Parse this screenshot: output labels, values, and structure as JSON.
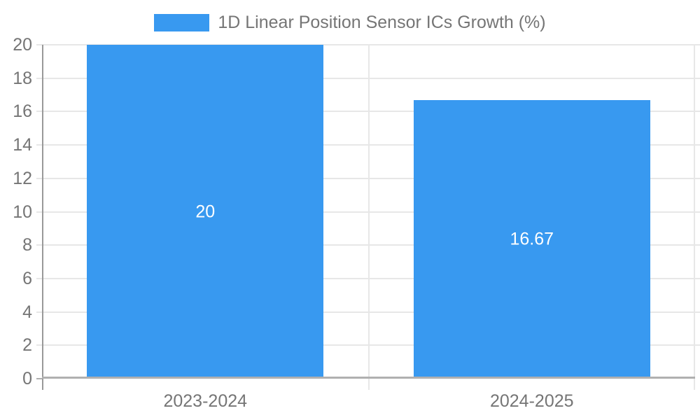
{
  "legend": {
    "label": "1D Linear Position Sensor ICs Growth (%)"
  },
  "chart_data": {
    "type": "bar",
    "title": "1D Linear Position Sensor ICs Growth (%)",
    "categories": [
      "2023-2024",
      "2024-2025"
    ],
    "values": [
      20,
      16.67
    ],
    "value_labels": [
      "20",
      "16.67"
    ],
    "series": [
      {
        "name": "1D Linear Position Sensor ICs Growth (%)",
        "values": [
          20,
          16.67
        ]
      }
    ],
    "xlabel": "",
    "ylabel": "",
    "ylim": [
      0,
      20
    ],
    "yticks": [
      0,
      2,
      4,
      6,
      8,
      10,
      12,
      14,
      16,
      18,
      20
    ],
    "grid": true,
    "legend_position": "top",
    "colors": {
      "bar": "#3899F0",
      "grid": "#e7e7e7",
      "axis_line": "#999999",
      "baseline": "#b0b0b0",
      "tick_label": "#757575",
      "value_label": "#ffffff",
      "background": "#ffffff"
    }
  }
}
